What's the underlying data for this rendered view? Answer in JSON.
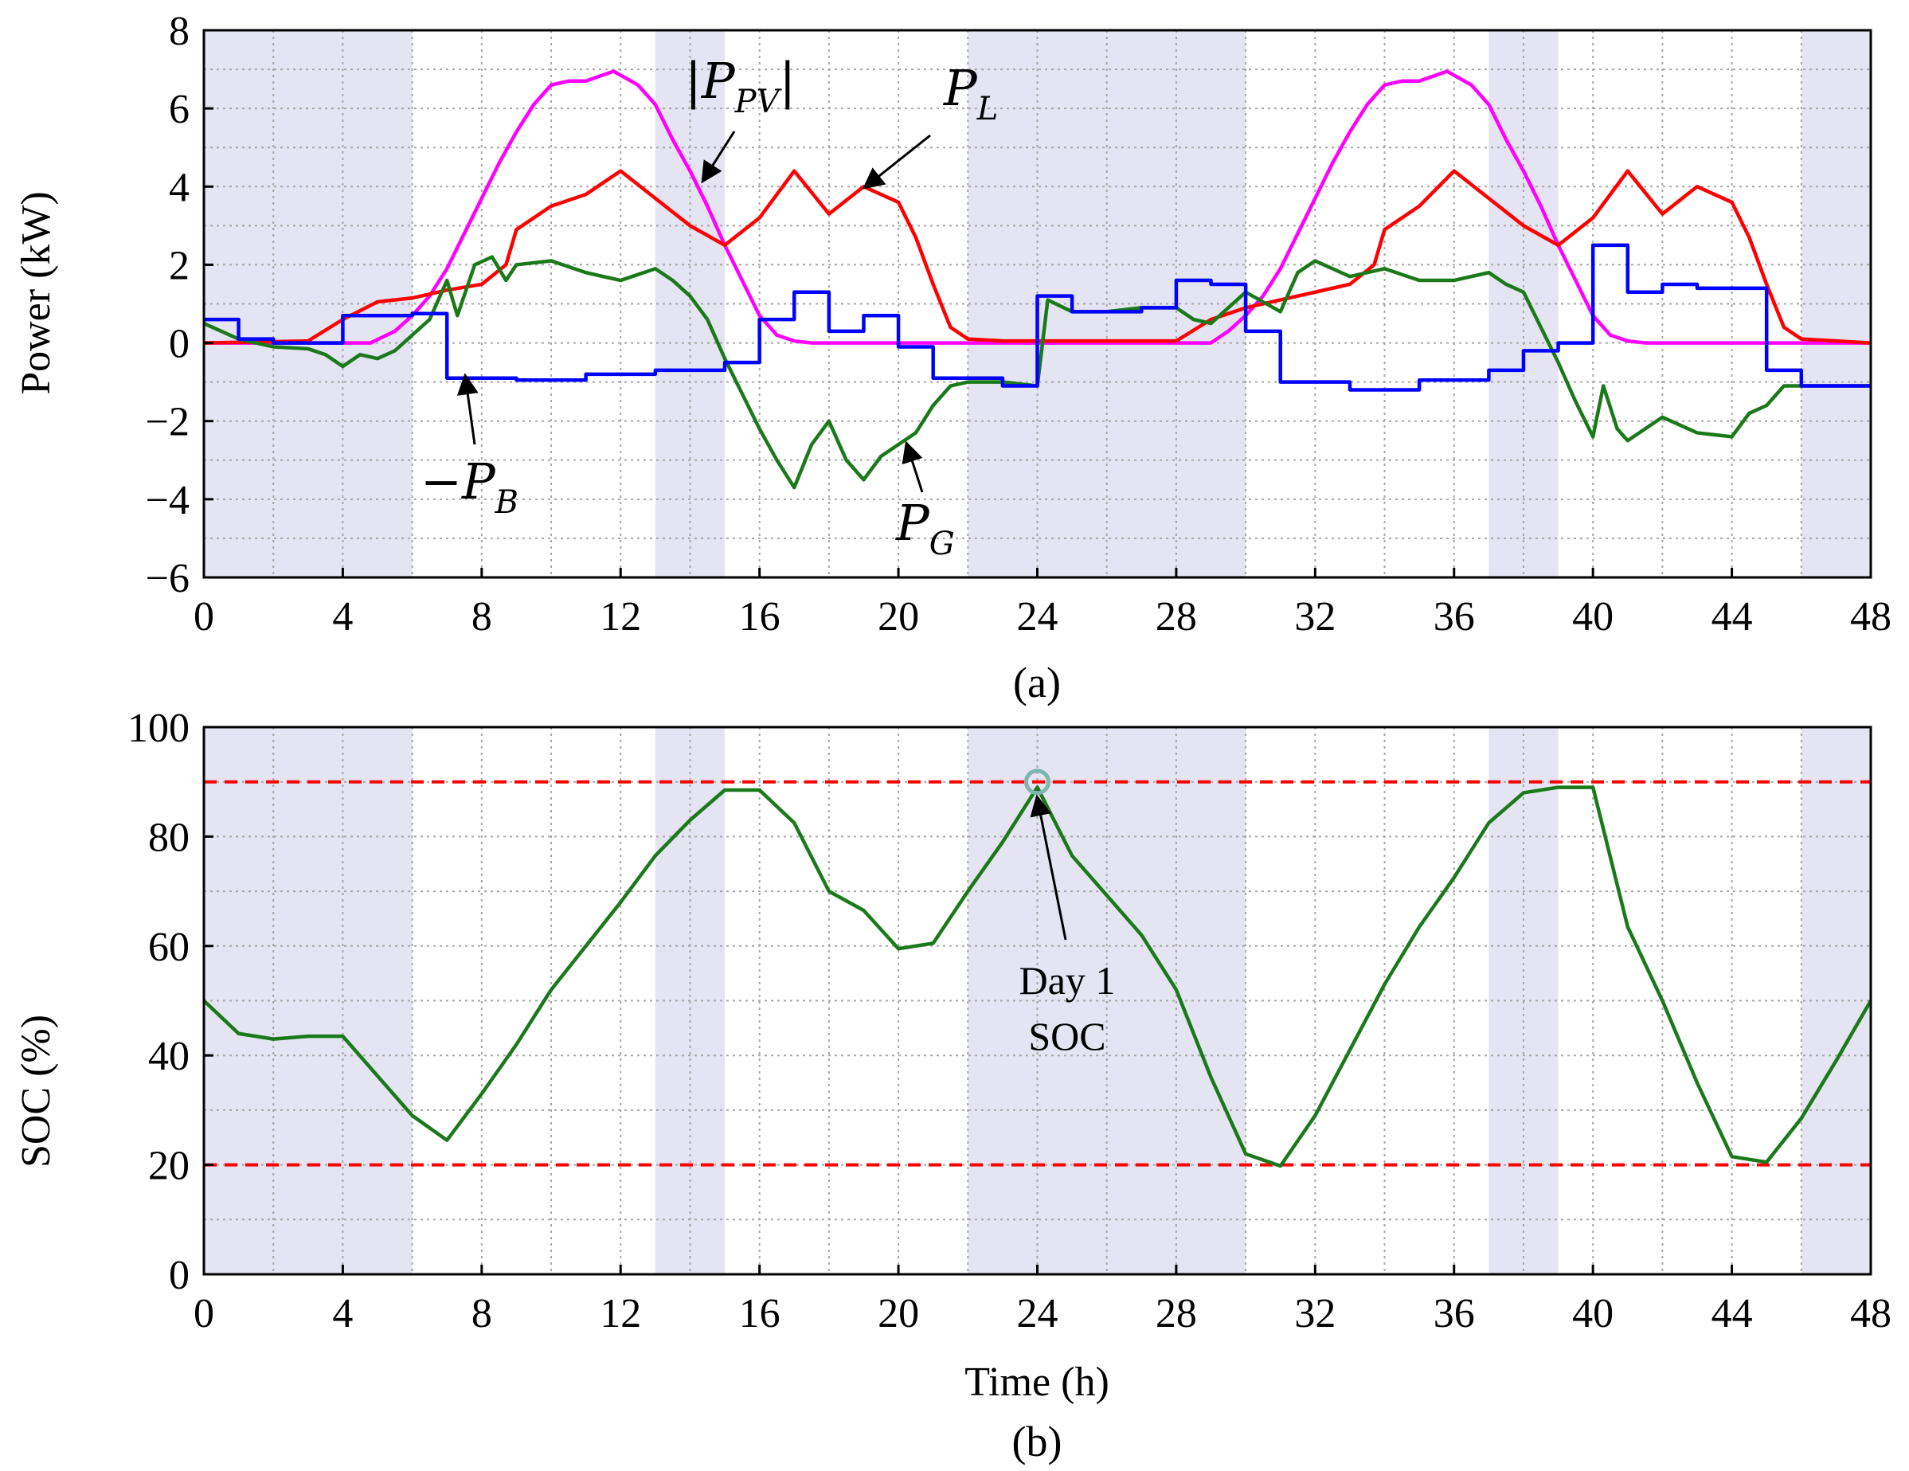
{
  "chart_data": [
    {
      "type": "line",
      "id": "a",
      "caption": "(a)",
      "xlabel": "",
      "ylabel": "Power (kW)",
      "xlim": [
        0,
        48
      ],
      "ylim": [
        -6,
        8
      ],
      "xticks": [
        "0",
        "4",
        "8",
        "12",
        "16",
        "20",
        "24",
        "28",
        "32",
        "36",
        "40",
        "44",
        "48"
      ],
      "yticks": [
        "−6",
        "−4",
        "−2",
        "0",
        "2",
        "4",
        "6",
        "8"
      ],
      "grid": true,
      "shaded_intervals": [
        [
          0,
          6
        ],
        [
          13,
          15
        ],
        [
          22,
          30
        ],
        [
          37,
          39
        ],
        [
          46,
          48
        ]
      ],
      "shade_color": "#e4e4f2",
      "series": [
        {
          "name": "|P_PV|",
          "color": "#ff00ff",
          "points": [
            [
              0,
              0
            ],
            [
              4.8,
              0
            ],
            [
              5.5,
              0.3
            ],
            [
              6,
              0.7
            ],
            [
              6.5,
              1.2
            ],
            [
              7,
              1.9
            ],
            [
              7.5,
              2.8
            ],
            [
              8,
              3.7
            ],
            [
              8.5,
              4.6
            ],
            [
              9,
              5.4
            ],
            [
              9.5,
              6.1
            ],
            [
              10,
              6.6
            ],
            [
              10.5,
              6.7
            ],
            [
              11,
              6.7
            ],
            [
              11.8,
              6.95
            ],
            [
              12.5,
              6.6
            ],
            [
              13,
              6.1
            ],
            [
              13.5,
              5.2
            ],
            [
              14,
              4.4
            ],
            [
              14.5,
              3.5
            ],
            [
              15,
              2.5
            ],
            [
              15.5,
              1.6
            ],
            [
              16,
              0.7
            ],
            [
              16.5,
              0.2
            ],
            [
              17,
              0.05
            ],
            [
              17.5,
              0
            ],
            [
              29,
              0
            ],
            [
              29.5,
              0.3
            ],
            [
              30,
              0.7
            ],
            [
              30.5,
              1.2
            ],
            [
              31,
              1.9
            ],
            [
              31.5,
              2.8
            ],
            [
              32,
              3.7
            ],
            [
              32.5,
              4.6
            ],
            [
              33,
              5.4
            ],
            [
              33.5,
              6.1
            ],
            [
              34,
              6.6
            ],
            [
              34.5,
              6.7
            ],
            [
              35,
              6.7
            ],
            [
              35.8,
              6.95
            ],
            [
              36.5,
              6.6
            ],
            [
              37,
              6.1
            ],
            [
              37.5,
              5.2
            ],
            [
              38,
              4.4
            ],
            [
              38.5,
              3.5
            ],
            [
              39,
              2.5
            ],
            [
              39.5,
              1.6
            ],
            [
              40,
              0.7
            ],
            [
              40.5,
              0.2
            ],
            [
              41,
              0.05
            ],
            [
              41.5,
              0
            ],
            [
              48,
              0
            ]
          ]
        },
        {
          "name": "P_L",
          "color": "#ff0000",
          "points": [
            [
              0,
              0
            ],
            [
              3,
              0.05
            ],
            [
              4,
              0.6
            ],
            [
              5,
              1.05
            ],
            [
              6,
              1.15
            ],
            [
              7,
              1.35
            ],
            [
              8,
              1.5
            ],
            [
              8.7,
              2.0
            ],
            [
              9,
              2.9
            ],
            [
              10,
              3.5
            ],
            [
              11,
              3.8
            ],
            [
              12,
              4.4
            ],
            [
              13,
              3.7
            ],
            [
              14,
              3.0
            ],
            [
              15,
              2.5
            ],
            [
              16,
              3.2
            ],
            [
              17,
              4.4
            ],
            [
              18,
              3.3
            ],
            [
              19,
              4.0
            ],
            [
              20,
              3.6
            ],
            [
              20.5,
              2.7
            ],
            [
              21,
              1.5
            ],
            [
              21.5,
              0.4
            ],
            [
              22,
              0.1
            ],
            [
              23,
              0.05
            ],
            [
              28,
              0.05
            ],
            [
              29,
              0.6
            ],
            [
              30,
              0.9
            ],
            [
              31,
              1.1
            ],
            [
              32,
              1.3
            ],
            [
              33,
              1.5
            ],
            [
              33.7,
              2.0
            ],
            [
              34,
              2.9
            ],
            [
              35,
              3.5
            ],
            [
              36,
              4.4
            ],
            [
              37,
              3.7
            ],
            [
              38,
              3.0
            ],
            [
              39,
              2.5
            ],
            [
              40,
              3.2
            ],
            [
              41,
              4.4
            ],
            [
              42,
              3.3
            ],
            [
              43,
              4.0
            ],
            [
              44,
              3.6
            ],
            [
              44.5,
              2.7
            ],
            [
              45,
              1.5
            ],
            [
              45.5,
              0.4
            ],
            [
              46,
              0.1
            ],
            [
              48,
              0
            ]
          ]
        },
        {
          "name": "P_G",
          "color": "#1a7a1a",
          "points": [
            [
              0,
              0.5
            ],
            [
              1,
              0.1
            ],
            [
              2,
              -0.1
            ],
            [
              3,
              -0.15
            ],
            [
              3.5,
              -0.3
            ],
            [
              4,
              -0.6
            ],
            [
              4.5,
              -0.3
            ],
            [
              5,
              -0.4
            ],
            [
              5.5,
              -0.2
            ],
            [
              6,
              0.2
            ],
            [
              6.5,
              0.6
            ],
            [
              7,
              1.6
            ],
            [
              7.3,
              0.7
            ],
            [
              7.8,
              2.0
            ],
            [
              8.3,
              2.2
            ],
            [
              8.7,
              1.6
            ],
            [
              9,
              2.0
            ],
            [
              10,
              2.1
            ],
            [
              11,
              1.8
            ],
            [
              12,
              1.6
            ],
            [
              13,
              1.9
            ],
            [
              13.5,
              1.6
            ],
            [
              14,
              1.2
            ],
            [
              14.5,
              0.6
            ],
            [
              15,
              -0.4
            ],
            [
              15.5,
              -1.3
            ],
            [
              16,
              -2.2
            ],
            [
              16.5,
              -3.0
            ],
            [
              17,
              -3.7
            ],
            [
              17.5,
              -2.6
            ],
            [
              18,
              -2.0
            ],
            [
              18.5,
              -3.0
            ],
            [
              19,
              -3.5
            ],
            [
              19.5,
              -2.9
            ],
            [
              20,
              -2.6
            ],
            [
              20.5,
              -2.3
            ],
            [
              21,
              -1.6
            ],
            [
              21.5,
              -1.1
            ],
            [
              22,
              -1.0
            ],
            [
              23,
              -1.0
            ],
            [
              24,
              -1.1
            ],
            [
              24.3,
              1.1
            ],
            [
              25,
              0.8
            ],
            [
              26,
              0.8
            ],
            [
              27,
              0.9
            ],
            [
              28,
              0.9
            ],
            [
              28.5,
              0.6
            ],
            [
              29,
              0.5
            ],
            [
              29.5,
              0.9
            ],
            [
              30,
              1.3
            ],
            [
              31,
              0.8
            ],
            [
              31.5,
              1.8
            ],
            [
              32,
              2.1
            ],
            [
              33,
              1.7
            ],
            [
              34,
              1.9
            ],
            [
              35,
              1.6
            ],
            [
              36,
              1.6
            ],
            [
              37,
              1.8
            ],
            [
              37.5,
              1.5
            ],
            [
              38,
              1.3
            ],
            [
              38.5,
              0.4
            ],
            [
              39,
              -0.5
            ],
            [
              39.5,
              -1.5
            ],
            [
              40,
              -2.4
            ],
            [
              40.3,
              -1.1
            ],
            [
              40.7,
              -2.2
            ],
            [
              41,
              -2.5
            ],
            [
              42,
              -1.9
            ],
            [
              43,
              -2.3
            ],
            [
              44,
              -2.4
            ],
            [
              44.5,
              -1.8
            ],
            [
              45,
              -1.6
            ],
            [
              45.5,
              -1.1
            ],
            [
              46,
              -1.1
            ],
            [
              48,
              -1.1
            ]
          ]
        },
        {
          "name": "-P_B",
          "color": "#0000ff",
          "step": true,
          "points": [
            [
              0,
              0.6
            ],
            [
              1,
              0.1
            ],
            [
              2,
              0
            ],
            [
              4,
              0.7
            ],
            [
              6,
              0.75
            ],
            [
              7,
              -0.9
            ],
            [
              9,
              -0.95
            ],
            [
              11,
              -0.8
            ],
            [
              13,
              -0.7
            ],
            [
              15,
              -0.5
            ],
            [
              16,
              0.6
            ],
            [
              17,
              1.3
            ],
            [
              18,
              0.3
            ],
            [
              19,
              0.7
            ],
            [
              20,
              -0.1
            ],
            [
              21,
              -0.9
            ],
            [
              23,
              -1.1
            ],
            [
              24,
              1.2
            ],
            [
              25,
              0.8
            ],
            [
              27,
              0.9
            ],
            [
              28,
              1.6
            ],
            [
              29,
              1.5
            ],
            [
              30,
              0.3
            ],
            [
              31,
              -1.0
            ],
            [
              33,
              -1.2
            ],
            [
              35,
              -0.95
            ],
            [
              37,
              -0.7
            ],
            [
              38,
              -0.2
            ],
            [
              39,
              0
            ],
            [
              40,
              2.5
            ],
            [
              41,
              1.3
            ],
            [
              42,
              1.5
            ],
            [
              43,
              1.4
            ],
            [
              45,
              -0.7
            ],
            [
              46,
              -1.1
            ],
            [
              48,
              -1.1
            ]
          ]
        }
      ],
      "annotations": [
        {
          "label": "|P",
          "sub": "PV",
          "suffix": "|"
        },
        {
          "label": "P",
          "sub": "L",
          "suffix": ""
        },
        {
          "label": "−P",
          "sub": "B",
          "suffix": ""
        },
        {
          "label": "P",
          "sub": "G",
          "suffix": ""
        }
      ]
    },
    {
      "type": "line",
      "id": "b",
      "caption": "(b)",
      "xlabel": "Time (h)",
      "ylabel": "SOC (%)",
      "xlim": [
        0,
        48
      ],
      "ylim": [
        0,
        100
      ],
      "xticks": [
        "0",
        "4",
        "8",
        "12",
        "16",
        "20",
        "24",
        "28",
        "32",
        "36",
        "40",
        "44",
        "48"
      ],
      "yticks": [
        "0",
        "20",
        "40",
        "60",
        "80",
        "100"
      ],
      "grid": true,
      "shaded_intervals": [
        [
          0,
          6
        ],
        [
          13,
          15
        ],
        [
          22,
          30
        ],
        [
          37,
          39
        ],
        [
          46,
          48
        ]
      ],
      "shade_color": "#e4e4f2",
      "limits": [
        {
          "y": 90,
          "color": "#ff0000"
        },
        {
          "y": 20,
          "color": "#ff0000"
        }
      ],
      "series": [
        {
          "name": "SOC",
          "color": "#1a7a1a",
          "points": [
            [
              0,
              50
            ],
            [
              1,
              44
            ],
            [
              2,
              43
            ],
            [
              3,
              43.5
            ],
            [
              4,
              43.5
            ],
            [
              6,
              29
            ],
            [
              7,
              24.5
            ],
            [
              8,
              33
            ],
            [
              9,
              42
            ],
            [
              10,
              52
            ],
            [
              12,
              68
            ],
            [
              13,
              76.5
            ],
            [
              14,
              83
            ],
            [
              15,
              88.5
            ],
            [
              16,
              88.5
            ],
            [
              17,
              82.5
            ],
            [
              18,
              70
            ],
            [
              19,
              66.5
            ],
            [
              20,
              59.5
            ],
            [
              21,
              60.5
            ],
            [
              22,
              70
            ],
            [
              23,
              79
            ],
            [
              24,
              89
            ],
            [
              25,
              76.5
            ],
            [
              27,
              62
            ],
            [
              28,
              52
            ],
            [
              29,
              36
            ],
            [
              30,
              22
            ],
            [
              31,
              19.8
            ],
            [
              32,
              29
            ],
            [
              33,
              41
            ],
            [
              34,
              53
            ],
            [
              35,
              63.5
            ],
            [
              36,
              72.5
            ],
            [
              37,
              82.5
            ],
            [
              38,
              88
            ],
            [
              39,
              89
            ],
            [
              40,
              89
            ],
            [
              41,
              63.5
            ],
            [
              42,
              50
            ],
            [
              43,
              35
            ],
            [
              44,
              21.5
            ],
            [
              45,
              20.5
            ],
            [
              46,
              28.5
            ],
            [
              47,
              39
            ],
            [
              48,
              50
            ]
          ]
        }
      ],
      "marker": {
        "x": 24,
        "y": 90,
        "color": "#7fb5b0"
      },
      "annotation_lines": [
        "Day 1",
        "SOC"
      ]
    }
  ]
}
